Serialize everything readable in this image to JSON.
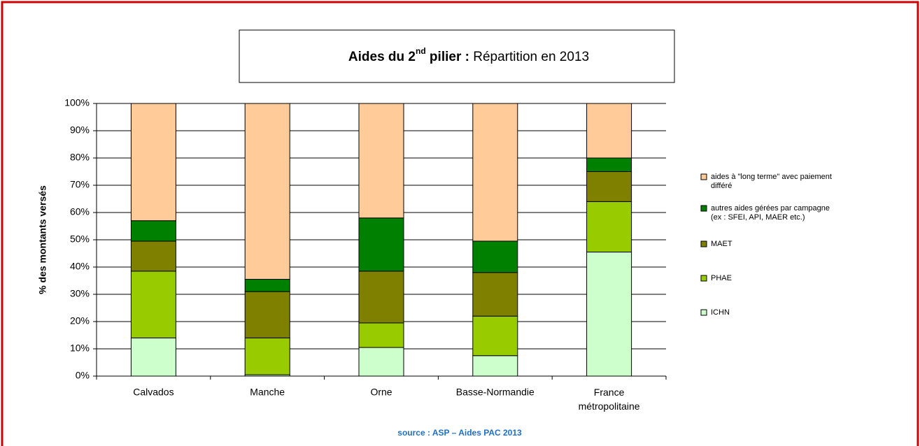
{
  "chart_data": {
    "type": "stacked_bar",
    "title": {
      "bold": "Aides du 2",
      "sup": "nd",
      "bold_rest": " pilier :",
      "normal": " Répartition en 2013"
    },
    "ylabel": "% des montants versés",
    "source": "source :  ASP – Aides PAC 2013",
    "categories": [
      "Calvados",
      "Manche",
      "Orne",
      "Basse-Normandie",
      "France métropolitaine"
    ],
    "series": [
      {
        "name": "ICHN",
        "color": "#ccffcc",
        "values": [
          14,
          0.5,
          10.5,
          7.5,
          45.5
        ]
      },
      {
        "name": "PHAE",
        "color": "#99cc00",
        "values": [
          24.5,
          13.5,
          9,
          14.5,
          18.5
        ]
      },
      {
        "name": "MAET",
        "color": "#808000",
        "values": [
          11,
          17,
          19,
          16,
          11
        ]
      },
      {
        "name": "autres aides gérées par campagne (ex : SFEI, API, MAER etc.)",
        "color": "#008000",
        "values": [
          7.5,
          4.5,
          19.5,
          11.5,
          5
        ]
      },
      {
        "name": "aides à \"long terme\" avec paiement différé",
        "color": "#ffcc99",
        "values": [
          43,
          64.5,
          42,
          50.5,
          20
        ]
      }
    ],
    "ylim": [
      0,
      100
    ],
    "yticks": [
      {
        "value": 0,
        "label": "0%"
      },
      {
        "value": 10,
        "label": "10%"
      },
      {
        "value": 20,
        "label": "20%"
      },
      {
        "value": 30,
        "label": "30%"
      },
      {
        "value": 40,
        "label": "40%"
      },
      {
        "value": 50,
        "label": "50%"
      },
      {
        "value": 60,
        "label": "60%"
      },
      {
        "value": 70,
        "label": "70%"
      },
      {
        "value": 80,
        "label": "80%"
      },
      {
        "value": 90,
        "label": "90%"
      },
      {
        "value": 100,
        "label": "100%"
      }
    ],
    "grid": true,
    "legend": "right"
  }
}
